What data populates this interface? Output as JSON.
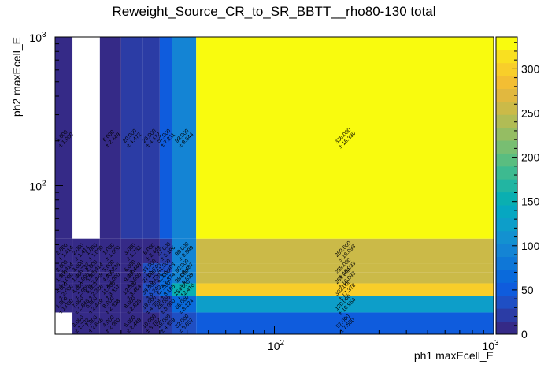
{
  "title": "Reweight_Source_CR_to_SR_BBTT__rho80-130 total",
  "chart_data": {
    "type": "heatmap",
    "title": "Reweight_Source_CR_to_SR_BBTT__rho80-130 total",
    "xlabel": "ph1 maxEcell_E",
    "ylabel": "ph2 maxEcell_E",
    "xscale": "log",
    "yscale": "log",
    "xlim": [
      10,
      1000
    ],
    "ylim": [
      10,
      1000
    ],
    "colorbar": {
      "range": [
        0,
        336
      ],
      "ticks": [
        0,
        50,
        100,
        150,
        200,
        250,
        300
      ],
      "colors": [
        "#352a87",
        "#2b3ca5",
        "#1f4fc4",
        "#0f5cdd",
        "#0a6adb",
        "#0f77d7",
        "#1484d4",
        "#1391d0",
        "#0d9ec9",
        "#06a7c1",
        "#0aafb1",
        "#22b5a2",
        "#3dba90",
        "#5abd80",
        "#78be72",
        "#95bd63",
        "#b1bc55",
        "#cbba48",
        "#e1b83f",
        "#f3be33",
        "#f8ce2a",
        "#f9e020",
        "#f9fb0e"
      ]
    },
    "x_edges": [
      10,
      12,
      14,
      16,
      20,
      25,
      30,
      34,
      44,
      1000
    ],
    "y_edges": [
      10,
      14,
      18,
      22,
      26,
      30,
      44,
      1000
    ],
    "cells": [
      {
        "xi": 0,
        "yi": 0,
        "value": 0
      },
      {
        "xi": 1,
        "yi": 0,
        "value": 3,
        "error": 1.732
      },
      {
        "xi": 2,
        "yi": 0,
        "value": 7,
        "error": 2.646
      },
      {
        "xi": 3,
        "yi": 0,
        "value": 4,
        "error": 2
      },
      {
        "xi": 4,
        "yi": 0,
        "value": 6,
        "error": 2.449
      },
      {
        "xi": 5,
        "yi": 0,
        "value": 10,
        "error": 3.162
      },
      {
        "xi": 6,
        "yi": 0,
        "value": 19,
        "error": 4.359
      },
      {
        "xi": 7,
        "yi": 0,
        "value": 32,
        "error": 5.657
      },
      {
        "xi": 8,
        "yi": 0,
        "value": 57,
        "error": 7.55
      },
      {
        "xi": 0,
        "yi": 1,
        "value": 1,
        "error": 1
      },
      {
        "xi": 1,
        "yi": 1,
        "value": 7,
        "error": 2.646
      },
      {
        "xi": 2,
        "yi": 1,
        "value": 6,
        "error": 2.449
      },
      {
        "xi": 3,
        "yi": 1,
        "value": 8,
        "error": 2.828
      },
      {
        "xi": 4,
        "yi": 1,
        "value": 8,
        "error": 2.828
      },
      {
        "xi": 5,
        "yi": 1,
        "value": 19,
        "error": 4.359
      },
      {
        "xi": 6,
        "yi": 1,
        "value": 25,
        "error": 5
      },
      {
        "xi": 7,
        "yi": 1,
        "value": 66,
        "error": 8.124
      },
      {
        "xi": 8,
        "yi": 1,
        "value": 120,
        "error": 10.954
      },
      {
        "xi": 0,
        "yi": 2,
        "value": 4,
        "error": 2
      },
      {
        "xi": 1,
        "yi": 2,
        "value": 4,
        "error": 2
      },
      {
        "xi": 2,
        "yi": 2,
        "value": 5,
        "error": 2.236
      },
      {
        "xi": 3,
        "yi": 2,
        "value": 11,
        "error": 3.317
      },
      {
        "xi": 4,
        "yi": 2,
        "value": 12,
        "error": 3.464
      },
      {
        "xi": 5,
        "yi": 2,
        "value": 39,
        "error": 6.245
      },
      {
        "xi": 6,
        "yi": 2,
        "value": 67,
        "error": 8.185
      },
      {
        "xi": 7,
        "yi": 2,
        "value": 154,
        "error": 12.41
      },
      {
        "xi": 8,
        "yi": 2,
        "value": 302,
        "error": 17.378
      },
      {
        "xi": 0,
        "yi": 3,
        "value": 1,
        "error": 1
      },
      {
        "xi": 1,
        "yi": 3,
        "value": 1,
        "error": 1
      },
      {
        "xi": 2,
        "yi": 3,
        "value": 6,
        "error": 2.449
      },
      {
        "xi": 3,
        "yi": 3,
        "value": 4,
        "error": 2
      },
      {
        "xi": 4,
        "yi": 3,
        "value": 9,
        "error": 3
      },
      {
        "xi": 5,
        "yi": 3,
        "value": 27,
        "error": 5.196
      },
      {
        "xi": 6,
        "yi": 3,
        "value": 62,
        "error": 7.874
      },
      {
        "xi": 7,
        "yi": 3,
        "value": 98,
        "error": 9.899
      },
      {
        "xi": 8,
        "yi": 3,
        "value": 259,
        "error": 16.093
      },
      {
        "xi": 0,
        "yi": 4,
        "value": 2,
        "error": 1.414
      },
      {
        "xi": 1,
        "yi": 4,
        "value": 3,
        "error": 1.732
      },
      {
        "xi": 2,
        "yi": 4,
        "value": 2,
        "error": 1.414
      },
      {
        "xi": 3,
        "yi": 4,
        "value": 5,
        "error": 2.236
      },
      {
        "xi": 4,
        "yi": 4,
        "value": 6,
        "error": 2.449
      },
      {
        "xi": 5,
        "yi": 4,
        "value": 33,
        "error": 5.745
      },
      {
        "xi": 6,
        "yi": 4,
        "value": 41,
        "error": 6.403
      },
      {
        "xi": 7,
        "yi": 4,
        "value": 90,
        "error": 9.487
      },
      {
        "xi": 8,
        "yi": 4,
        "value": 259,
        "error": 16.093
      },
      {
        "xi": 0,
        "yi": 5,
        "value": 2,
        "error": 1.414
      },
      {
        "xi": 1,
        "yi": 5,
        "value": 2,
        "error": 1.414
      },
      {
        "xi": 2,
        "yi": 5,
        "value": 1,
        "error": 1
      },
      {
        "xi": 3,
        "yi": 5,
        "value": 1,
        "error": 1
      },
      {
        "xi": 4,
        "yi": 5,
        "value": 3,
        "error": 1.732
      },
      {
        "xi": 5,
        "yi": 5,
        "value": 6,
        "error": 2.449
      },
      {
        "xi": 6,
        "yi": 5,
        "value": 27,
        "error": 5.196
      },
      {
        "xi": 7,
        "yi": 5,
        "value": 98,
        "error": 9.899
      },
      {
        "xi": 8,
        "yi": 5,
        "value": 259,
        "error": 16.093
      },
      {
        "xi": 0,
        "yi": 6,
        "value": 1,
        "error": 1
      },
      {
        "xi": 1,
        "yi": 6,
        "value": 0
      },
      {
        "xi": 2,
        "yi": 6,
        "value": 0
      },
      {
        "xi": 3,
        "yi": 6,
        "value": 6,
        "error": 2.449
      },
      {
        "xi": 4,
        "yi": 6,
        "value": 20,
        "error": 4.472
      },
      {
        "xi": 5,
        "yi": 6,
        "value": 20,
        "error": 4.472
      },
      {
        "xi": 6,
        "yi": 6,
        "value": 52,
        "error": 7.211
      },
      {
        "xi": 7,
        "yi": 6,
        "value": 93,
        "error": 9.644
      },
      {
        "xi": 8,
        "yi": 6,
        "value": 336,
        "error": 18.33
      }
    ]
  }
}
